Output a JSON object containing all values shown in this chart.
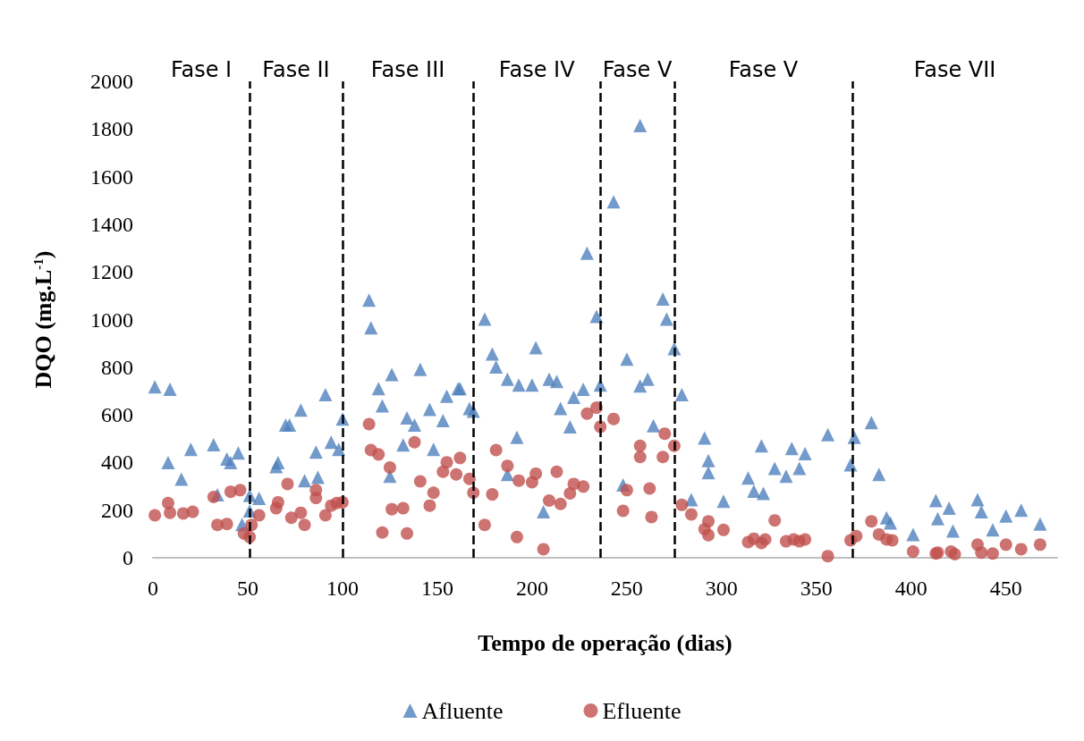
{
  "chart_data": {
    "type": "scatter",
    "xlabel": "Tempo de operação (dias)",
    "ylabel": "DQO (mg.L$^{-1}$)",
    "xlim": [
      0,
      477
    ],
    "xticks": [
      0,
      50,
      100,
      150,
      200,
      250,
      300,
      350,
      400,
      450
    ],
    "ylim": [
      0,
      2000
    ],
    "yticks": [
      0,
      200,
      400,
      600,
      800,
      1000,
      1200,
      1400,
      1600,
      1800,
      2000
    ],
    "grid": false,
    "legend": "bottom",
    "ref_lines": [
      {
        "axis": "x",
        "value": 51,
        "line_style": "dashed",
        "color": "#000000"
      },
      {
        "axis": "x",
        "value": 100,
        "line_style": "dashed",
        "color": "#000000"
      },
      {
        "axis": "x",
        "value": 169,
        "line_style": "dashed",
        "color": "#000000"
      },
      {
        "axis": "x",
        "value": 236,
        "line_style": "dashed",
        "color": "#000000"
      },
      {
        "axis": "x",
        "value": 275,
        "line_style": "dashed",
        "color": "#000000"
      },
      {
        "axis": "x",
        "value": 369,
        "line_style": "dashed",
        "color": "#000000"
      }
    ],
    "annotations": [
      "Fase I",
      "Fase II",
      "Fase III",
      "Fase IV",
      "Fase V",
      "Fase V",
      "Fase VII"
    ],
    "series": [
      {
        "name": "Afluente",
        "color": "#4f81bd",
        "marker": "triangle",
        "x": [
          1,
          9,
          8,
          15,
          20,
          32,
          34,
          39,
          41,
          45,
          47,
          51,
          51,
          56,
          65,
          66,
          70,
          72,
          78,
          80,
          86,
          87,
          91,
          94,
          98,
          100,
          114,
          115,
          119,
          126,
          121,
          125,
          134,
          138,
          132,
          141,
          146,
          148,
          153,
          155,
          161,
          162,
          167,
          169,
          175,
          179,
          181,
          187,
          193,
          200,
          202,
          209,
          213,
          192,
          187,
          206,
          215,
          220,
          222,
          227,
          229,
          234,
          236,
          243,
          248,
          250,
          257,
          261,
          257,
          269,
          271,
          264,
          275,
          279,
          291,
          293,
          293,
          284,
          301,
          314,
          317,
          321,
          322,
          328,
          334,
          337,
          341,
          344,
          356,
          368,
          370,
          379,
          383,
          387,
          389,
          401,
          413,
          414,
          420,
          422,
          435,
          437,
          443,
          450,
          458,
          468
        ],
        "values": [
          718,
          707,
          400,
          330,
          455,
          475,
          265,
          415,
          400,
          440,
          140,
          262,
          197,
          250,
          383,
          400,
          557,
          557,
          620,
          324,
          444,
          338,
          685,
          485,
          455,
          583,
          1082,
          965,
          710,
          769,
          638,
          342,
          587,
          557,
          474,
          791,
          623,
          455,
          576,
          678,
          710,
          710,
          627,
          615,
          1002,
          856,
          801,
          750,
          725,
          725,
          882,
          750,
          740,
          506,
          350,
          193,
          627,
          550,
          674,
          707,
          1279,
          1013,
          725,
          1494,
          306,
          834,
          721,
          750,
          1814,
          1086,
          1002,
          554,
          878,
          685,
          503,
          408,
          357,
          244,
          237,
          335,
          280,
          470,
          270,
          375,
          342,
          459,
          375,
          437,
          517,
          390,
          506,
          568,
          350,
          168,
          146,
          98,
          240,
          164,
          208,
          113,
          244,
          193,
          117,
          175,
          200,
          142
        ]
      },
      {
        "name": "Efluente",
        "color": "#c0504d",
        "marker": "circle",
        "x": [
          1,
          8,
          9,
          16,
          21,
          32,
          34,
          39,
          41,
          46,
          48,
          51,
          52,
          56,
          65,
          66,
          71,
          73,
          78,
          80,
          86,
          86,
          91,
          94,
          97,
          100,
          114,
          115,
          119,
          125,
          121,
          126,
          132,
          134,
          138,
          141,
          148,
          146,
          153,
          155,
          160,
          162,
          167,
          169,
          175,
          179,
          181,
          187,
          193,
          192,
          200,
          202,
          206,
          209,
          213,
          215,
          220,
          222,
          227,
          229,
          234,
          236,
          243,
          248,
          250,
          257,
          257,
          262,
          263,
          269,
          270,
          275,
          279,
          284,
          291,
          293,
          293,
          301,
          314,
          317,
          321,
          323,
          328,
          334,
          338,
          341,
          344,
          356,
          368,
          371,
          379,
          383,
          387,
          390,
          401,
          413,
          414,
          421,
          423,
          435,
          437,
          443,
          450,
          458,
          468
        ],
        "values": [
          178,
          230,
          189,
          186,
          193,
          255,
          138,
          142,
          277,
          284,
          102,
          87,
          138,
          178,
          208,
          233,
          310,
          168,
          189,
          138,
          284,
          251,
          178,
          219,
          230,
          233,
          561,
          452,
          434,
          379,
          106,
          204,
          208,
          102,
          485,
          321,
          273,
          219,
          361,
          401,
          350,
          419,
          331,
          273,
          138,
          266,
          452,
          386,
          324,
          87,
          317,
          353,
          36,
          240,
          361,
          226,
          270,
          310,
          299,
          605,
          630,
          550,
          583,
          197,
          284,
          470,
          423,
          291,
          171,
          423,
          521,
          470,
          222,
          182,
          120,
          153,
          95,
          117,
          66,
          80,
          62,
          77,
          157,
          69,
          77,
          69,
          77,
          7,
          73,
          91,
          153,
          98,
          77,
          73,
          26,
          18,
          22,
          26,
          15,
          55,
          22,
          18,
          55,
          36,
          55
        ]
      }
    ]
  }
}
